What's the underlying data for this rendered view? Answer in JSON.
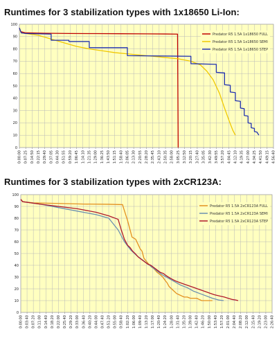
{
  "colors": {
    "panel_bg": "#ffffc0",
    "grid": "#b8b8b8",
    "axis": "#777777",
    "text": "#222222"
  },
  "chart_data": [
    {
      "type": "line",
      "title": "Runtimes for 3 stabilization types with 1x18650 Li-Ion:",
      "ylim": [
        0,
        100
      ],
      "yticks": [
        0,
        10,
        20,
        30,
        40,
        50,
        60,
        70,
        80,
        90,
        100
      ],
      "xticks": [
        "0:00:00",
        "0:07:25",
        "0:14:50",
        "0:22:15",
        "0:29:40",
        "0:37:05",
        "0:44:30",
        "0:51:55",
        "0:59:20",
        "1:06:45",
        "1:14:10",
        "1:21:35",
        "1:29:00",
        "1:36:25",
        "1:43:50",
        "1:51:15",
        "1:58:40",
        "2:06:05",
        "2:13:30",
        "2:20:55",
        "2:28:20",
        "2:35:45",
        "2:43:10",
        "2:50:35",
        "2:58:00",
        "3:05:25",
        "3:12:50",
        "3:20:15",
        "3:27:40",
        "3:35:05",
        "3:42:30",
        "3:49:55",
        "3:57:20",
        "4:04:45",
        "4:12:10",
        "4:19:35",
        "4:27:00",
        "4:34:25",
        "4:41:50",
        "4:49:15",
        "4:56:40"
      ],
      "x_unit_max": 40,
      "grid": true,
      "legend_position": "top-right",
      "series": [
        {
          "name": "Predator R5 1.5A 1x18650 FULL",
          "color": "#c00000",
          "x": [
            0,
            0.2,
            1,
            4,
            8,
            12,
            16,
            20,
            23,
            24.9,
            25.0
          ],
          "y": [
            97,
            94,
            93,
            92.7,
            92.5,
            92.4,
            92.3,
            92.2,
            92.1,
            92.0,
            0
          ]
        },
        {
          "name": "Predator R5 1.5A 1x18650 SEMI",
          "color": "#f0c800",
          "x": [
            0,
            0.3,
            1,
            3,
            5,
            7,
            9,
            11,
            13,
            15,
            17,
            19,
            21,
            23,
            25,
            27,
            28.5,
            29.5,
            30.5,
            31.5,
            32.3,
            33.0,
            33.6,
            34.0
          ],
          "y": [
            97,
            93,
            92.5,
            91,
            88,
            85,
            82,
            80,
            78.5,
            77,
            76,
            75,
            74,
            73,
            72,
            70,
            67,
            62,
            55,
            44,
            32,
            22,
            14,
            10
          ]
        },
        {
          "name": "Predator R5 1.5A 1x18650 STEP",
          "color": "#2030b0",
          "x": [
            0,
            0.3,
            1,
            5,
            5,
            7.8,
            7.8,
            11,
            11,
            17,
            17,
            27,
            27,
            31,
            31,
            32.3,
            32.3,
            33.2,
            33.2,
            34,
            34,
            34.8,
            34.8,
            35.4,
            35.4,
            36.0,
            36.0,
            36.5,
            36.5,
            37.0,
            37.0,
            37.4,
            37.7
          ],
          "y": [
            97,
            93,
            92.5,
            92,
            87,
            87,
            86,
            86,
            81,
            81,
            74.5,
            74,
            68,
            67.5,
            61,
            60.5,
            51,
            50.5,
            45,
            44.5,
            38,
            37.5,
            32,
            31.5,
            26,
            25.5,
            20,
            19.5,
            16,
            15.5,
            13,
            12.5,
            10
          ]
        }
      ]
    },
    {
      "type": "line",
      "title": "Runtimes for 3 stabilization types with 2xCR123A:",
      "ylim": [
        0,
        100
      ],
      "yticks": [
        0,
        10,
        20,
        30,
        40,
        50,
        60,
        70,
        80,
        90,
        100
      ],
      "xticks": [
        "0:00:00",
        "0:03:40",
        "0:07:20",
        "0:11:00",
        "0:14:40",
        "0:18:20",
        "0:22:00",
        "0:25:40",
        "0:29:20",
        "0:33:00",
        "0:36:40",
        "0:40:20",
        "0:44:00",
        "0:47:40",
        "0:51:20",
        "0:55:00",
        "0:58:40",
        "1:02:20",
        "1:06:00",
        "1:09:40",
        "1:13:20",
        "1:17:00",
        "1:20:40",
        "1:24:20",
        "1:28:00",
        "1:31:40",
        "1:35:20",
        "1:39:00",
        "1:42:40",
        "1:46:20",
        "1:50:00",
        "1:53:40",
        "1:57:20",
        "2:01:00",
        "2:04:40",
        "2:08:20",
        "2:12:00",
        "2:15:40",
        "2:19:20",
        "2:23:00",
        "2:26:40"
      ],
      "x_unit_max": 40,
      "grid": true,
      "legend_position": "top-right",
      "series": [
        {
          "name": "Predator R5 1.5A 2xCR123A FULL",
          "color": "#e39020",
          "x": [
            0,
            0.3,
            2,
            6,
            10,
            14,
            16.2,
            16.4,
            17.0,
            17.7,
            18.3,
            19.0,
            19.3,
            19.6,
            19.9,
            20.2,
            20.7,
            21.2,
            21.7,
            22.2,
            22.6,
            23.0,
            23.3,
            23.6,
            24.0,
            24.4,
            24.8,
            25.2,
            25.6,
            26.0,
            26.5,
            27.0,
            27.6,
            28.0,
            28.4,
            28.8,
            29.5,
            30.5
          ],
          "y": [
            96,
            94,
            93,
            92.5,
            92,
            91.8,
            91.5,
            88,
            78,
            64,
            62,
            54,
            52,
            46,
            44,
            42,
            39,
            37,
            34,
            32,
            30,
            27,
            25,
            22,
            20,
            18,
            16,
            15,
            14,
            13,
            13,
            12,
            12,
            12,
            11,
            10,
            10,
            10
          ]
        },
        {
          "name": "Predator R5 1.5A 2xCR123A SEMI",
          "color": "#6a8fb0",
          "x": [
            0,
            0.3,
            3,
            6,
            9,
            12,
            14,
            15.5,
            16.5,
            17.5,
            18.5,
            19.5,
            20.5,
            21.5,
            22.5,
            23.5,
            24.5,
            25.5,
            26.5,
            27.5,
            28.5,
            29.5,
            30.5,
            31.5,
            32.3
          ],
          "y": [
            96,
            94,
            92,
            89,
            86,
            83,
            80,
            70,
            60,
            53,
            48,
            44,
            40,
            36,
            32,
            29,
            26,
            23,
            21,
            18,
            16,
            14,
            12,
            10.5,
            10
          ]
        },
        {
          "name": "Predator R5 1.5A 2xCR123A STEP",
          "color": "#b0182a",
          "x": [
            0,
            0.3,
            3,
            6,
            9,
            12,
            14,
            15.5,
            16,
            16.5,
            17,
            17.4,
            17.8,
            18.2,
            18.7,
            19.2,
            19.7,
            20.2,
            20.7,
            21.2,
            21.7,
            22.2,
            22.7,
            23.2,
            23.8,
            24.5,
            25.2,
            26,
            26.8,
            27.6,
            28.4,
            29.2,
            30,
            30.8,
            31.6,
            32.4,
            33.0,
            33.6,
            34.2,
            34.6
          ],
          "y": [
            96,
            94,
            92,
            90,
            88,
            85,
            82,
            79,
            70,
            62,
            57,
            55,
            52,
            50,
            47,
            45,
            43,
            41,
            40,
            38,
            36,
            34,
            33,
            31,
            29,
            27,
            25.5,
            24,
            22.5,
            21,
            19.5,
            18,
            16.5,
            15,
            14,
            13,
            12,
            11,
            10.5,
            10
          ]
        }
      ]
    }
  ]
}
